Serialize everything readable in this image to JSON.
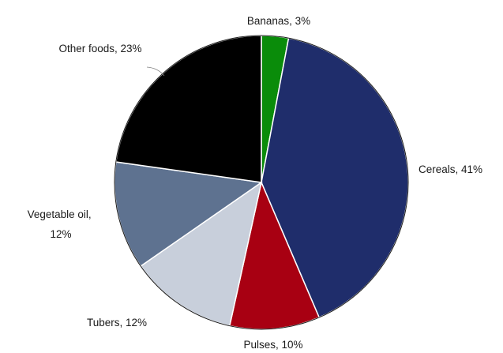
{
  "chart_data": {
    "type": "pie",
    "title": "",
    "start_angle_deg": 0,
    "direction": "clockwise",
    "slices": [
      {
        "label": "Bananas",
        "value": 3,
        "display": "Bananas, 3%",
        "color": "#0a8c0a"
      },
      {
        "label": "Cereals",
        "value": 41,
        "display": "Cereals, 41%",
        "color": "#1f2d6b"
      },
      {
        "label": "Pulses",
        "value": 10,
        "display": "Pulses, 10%",
        "color": "#a80012"
      },
      {
        "label": "Tubers",
        "value": 12,
        "display": "Tubers, 12%",
        "color": "#c8cfdb"
      },
      {
        "label": "Vegetable oil",
        "value": 12,
        "display": "Vegetable oil, 12%",
        "display_lines": [
          "Vegetable oil,",
          "12%"
        ],
        "color": "#5e7290"
      },
      {
        "label": "Other foods",
        "value": 23,
        "display": "Other foods, 23%",
        "color": "#000000"
      }
    ],
    "slice_stroke": "#ffffff",
    "outline": "#1a1a1a"
  }
}
